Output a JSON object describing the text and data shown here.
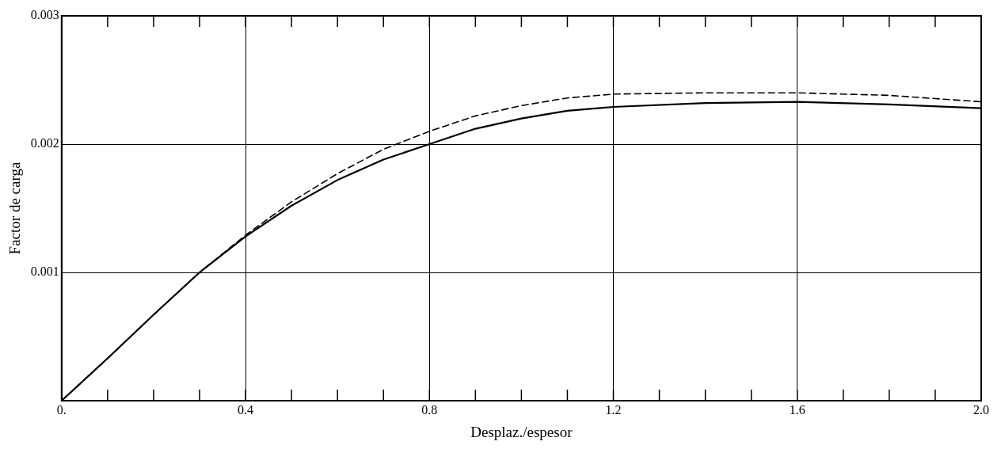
{
  "chart_data": {
    "type": "line",
    "xlabel": "Desplaz./espesor",
    "ylabel": "Factor de carga",
    "xlim": [
      0,
      2.0
    ],
    "xticks": [
      {
        "value": 0,
        "label": "0."
      },
      {
        "value": 0.1,
        "label": null
      },
      {
        "value": 0.2,
        "label": null
      },
      {
        "value": 0.3,
        "label": null
      },
      {
        "value": 0.4,
        "label": "0.4"
      },
      {
        "value": 0.5,
        "label": null
      },
      {
        "value": 0.6,
        "label": null
      },
      {
        "value": 0.7,
        "label": null
      },
      {
        "value": 0.8,
        "label": "0.8"
      },
      {
        "value": 0.9,
        "label": null
      },
      {
        "value": 1.0,
        "label": null
      },
      {
        "value": 1.1,
        "label": null
      },
      {
        "value": 1.2,
        "label": "1.2"
      },
      {
        "value": 1.3,
        "label": null
      },
      {
        "value": 1.4,
        "label": null
      },
      {
        "value": 1.5,
        "label": null
      },
      {
        "value": 1.6,
        "label": "1.6"
      },
      {
        "value": 1.7,
        "label": null
      },
      {
        "value": 1.8,
        "label": null
      },
      {
        "value": 1.9,
        "label": null
      },
      {
        "value": 2.0,
        "label": "2.0"
      }
    ],
    "ylim": [
      0,
      0.003
    ],
    "yticks": [
      {
        "value": 0,
        "label": null
      },
      0.001,
      0.002,
      0.003
    ],
    "grid": true,
    "legend": false,
    "marker": "none",
    "x": [
      0,
      0.1,
      0.2,
      0.3,
      0.4,
      0.5,
      0.6,
      0.7,
      0.8,
      0.9,
      1.0,
      1.1,
      1.2,
      1.4,
      1.6,
      1.8,
      2.0
    ],
    "series": [
      {
        "color": "#000000",
        "line_style": "solid",
        "values": [
          0,
          0.00033,
          0.00067,
          0.001,
          0.00128,
          0.00152,
          0.00172,
          0.00188,
          0.002,
          0.00212,
          0.0022,
          0.00226,
          0.00229,
          0.00232,
          0.00233,
          0.00231,
          0.00228
        ]
      },
      {
        "color": "#000000",
        "line_style": "dashed",
        "values": [
          0,
          0.00033,
          0.00067,
          0.001,
          0.00129,
          0.00155,
          0.00177,
          0.00196,
          0.0021,
          0.00222,
          0.0023,
          0.00236,
          0.00239,
          0.0024,
          0.0024,
          0.00238,
          0.00233
        ]
      }
    ]
  }
}
